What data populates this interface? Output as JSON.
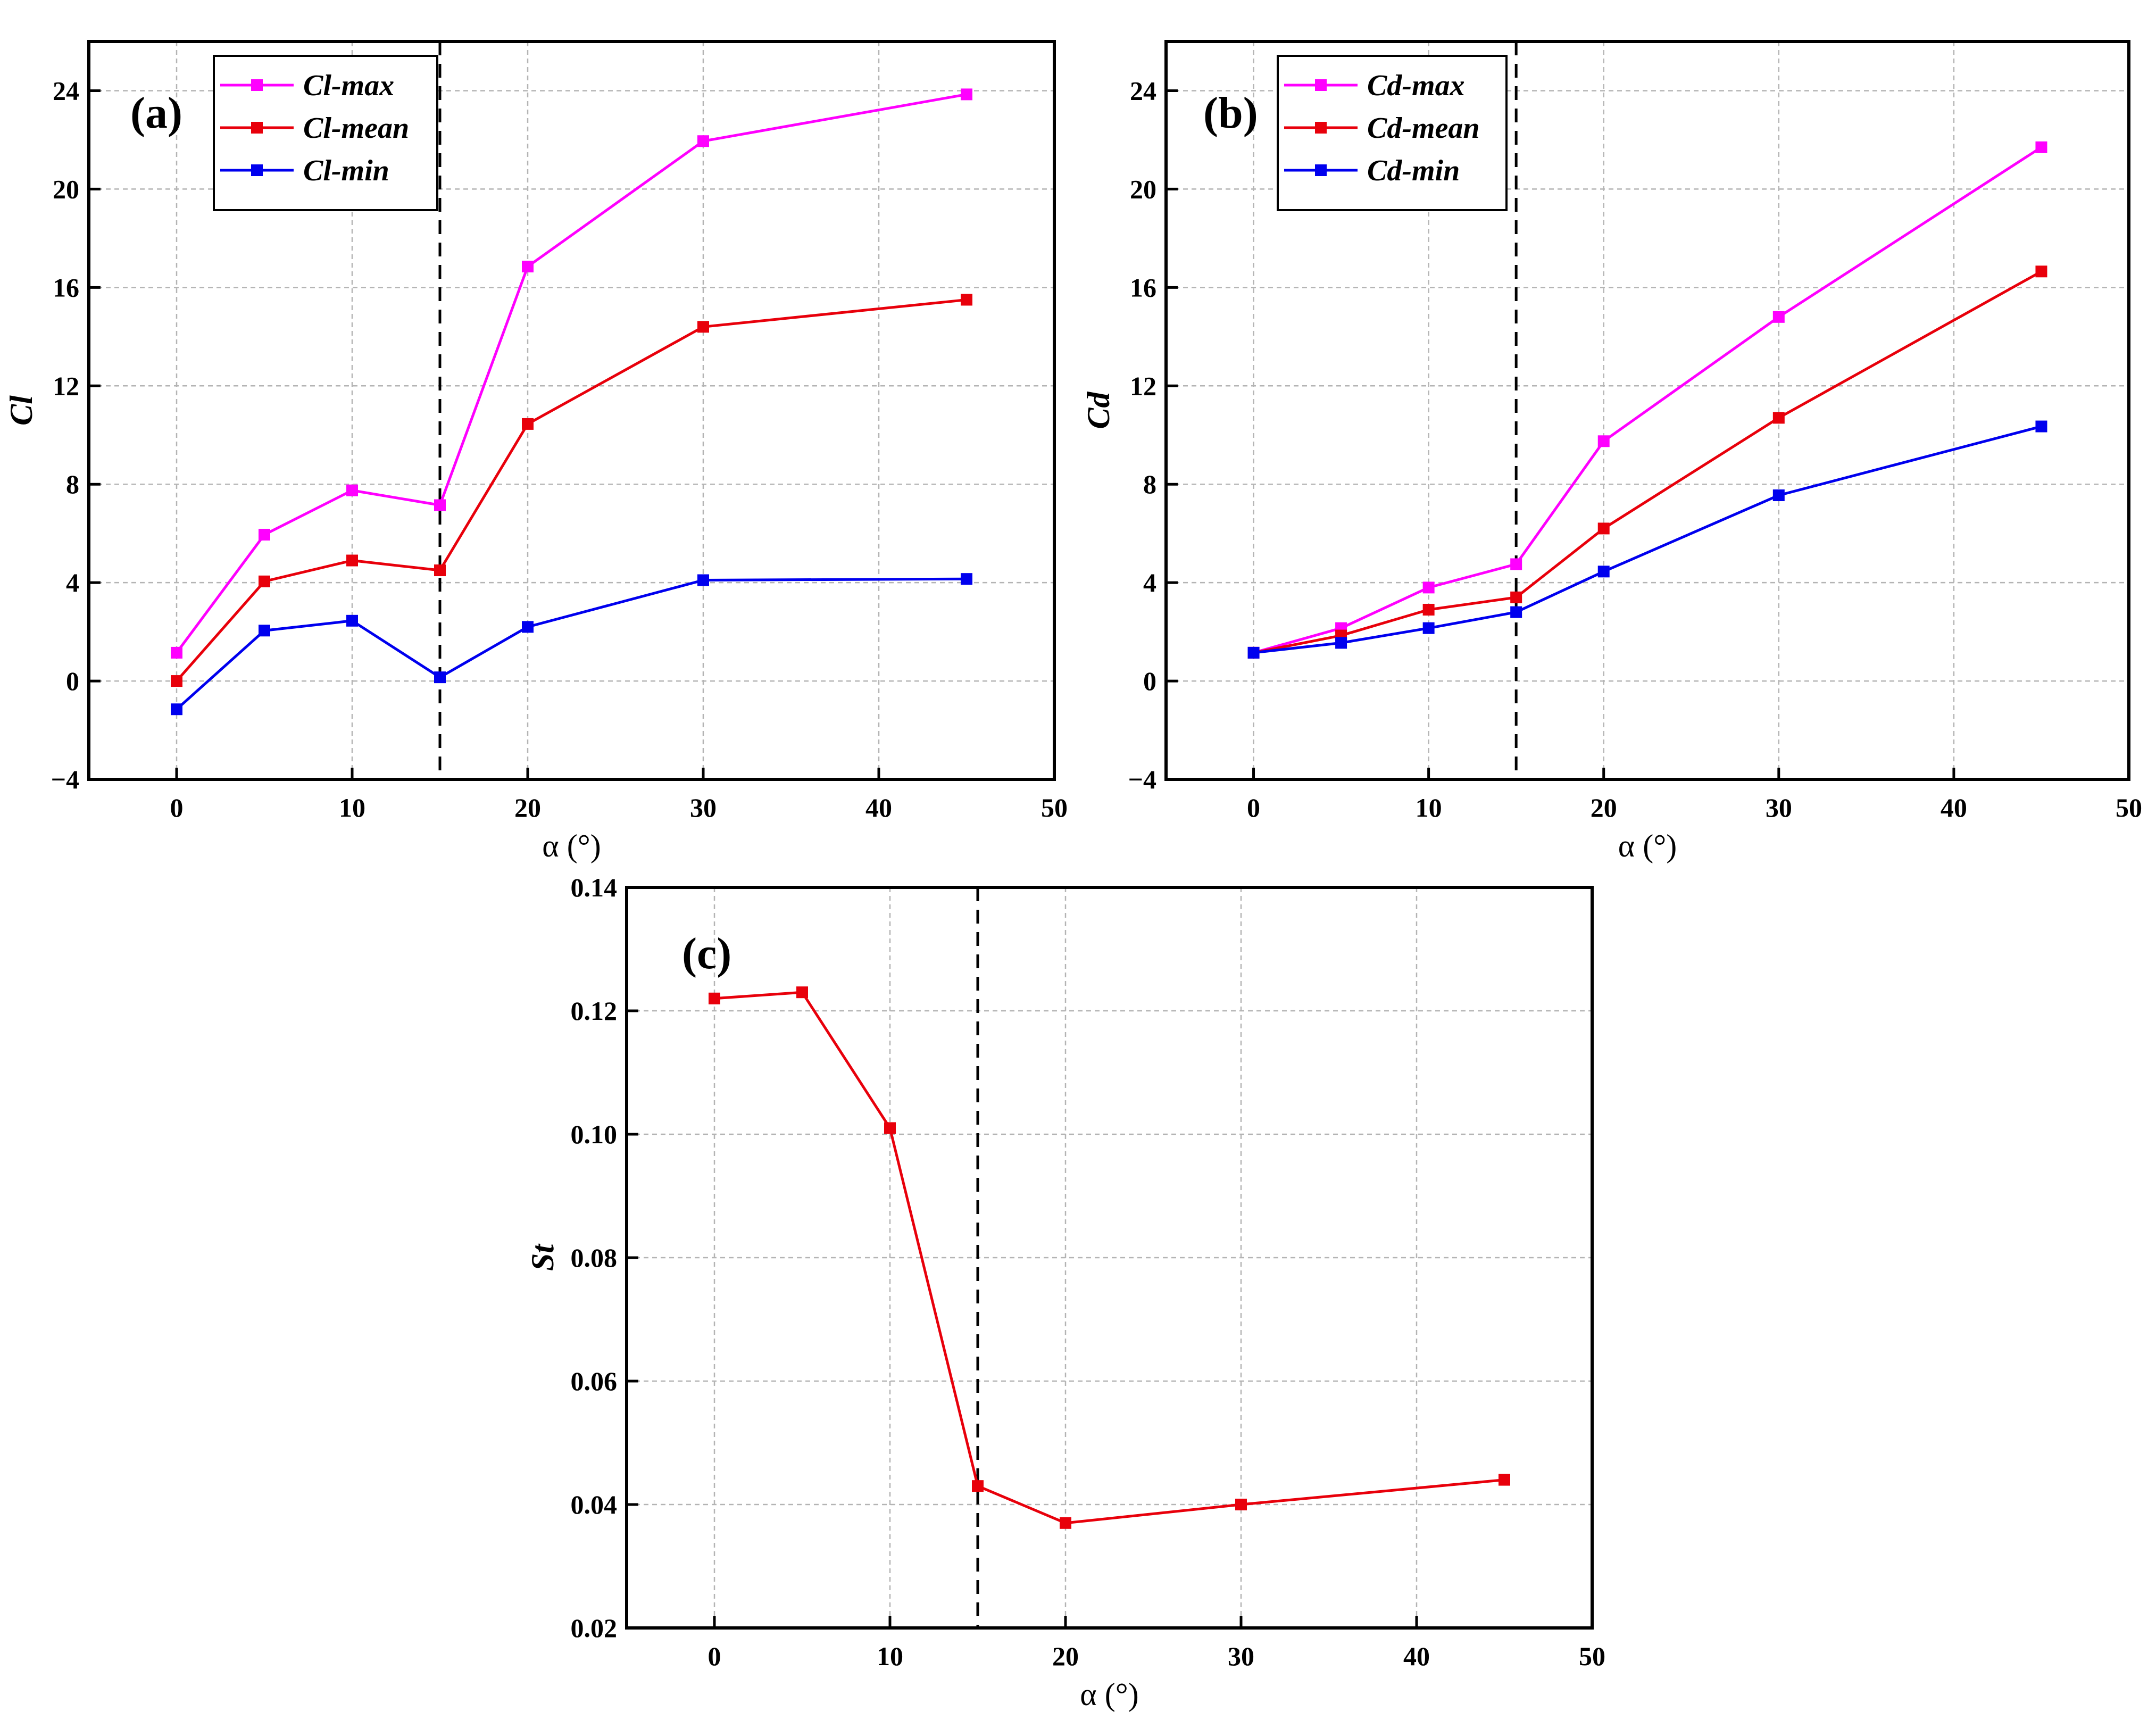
{
  "chart_data": [
    {
      "id": "a",
      "type": "line",
      "panel_label": "(a)",
      "xlabel": "α (°)",
      "ylabel": "Cl",
      "xlim": [
        -5,
        50
      ],
      "ylim": [
        -4,
        26
      ],
      "xticks": [
        0,
        10,
        20,
        30,
        40,
        50
      ],
      "yticks": [
        -4,
        0,
        4,
        8,
        12,
        16,
        20,
        24
      ],
      "grid": true,
      "vline_x": 15,
      "legend_position": "top-left",
      "x": [
        0,
        5,
        10,
        15,
        20,
        30,
        45
      ],
      "series": [
        {
          "name": "Cl-max",
          "color": "#ff00ff",
          "values": [
            1.15,
            5.95,
            7.75,
            7.15,
            16.85,
            21.95,
            23.85
          ]
        },
        {
          "name": "Cl-mean",
          "color": "#e8000b",
          "values": [
            0.0,
            4.05,
            4.9,
            4.5,
            10.45,
            14.4,
            15.5
          ]
        },
        {
          "name": "Cl-min",
          "color": "#0000ee",
          "values": [
            -1.15,
            2.05,
            2.45,
            0.15,
            2.2,
            4.1,
            4.15
          ]
        }
      ]
    },
    {
      "id": "b",
      "type": "line",
      "panel_label": "(b)",
      "xlabel": "α (°)",
      "ylabel": "Cd",
      "xlim": [
        -5,
        50
      ],
      "ylim": [
        -4,
        26
      ],
      "xticks": [
        0,
        10,
        20,
        30,
        40,
        50
      ],
      "yticks": [
        -4,
        0,
        4,
        8,
        12,
        16,
        20,
        24
      ],
      "grid": true,
      "vline_x": 15,
      "legend_position": "top-left",
      "x": [
        0,
        5,
        10,
        15,
        20,
        30,
        45
      ],
      "series": [
        {
          "name": "Cd-max",
          "color": "#ff00ff",
          "values": [
            1.15,
            2.15,
            3.8,
            4.75,
            9.75,
            14.8,
            21.7
          ]
        },
        {
          "name": "Cd-mean",
          "color": "#e8000b",
          "values": [
            1.15,
            1.85,
            2.9,
            3.4,
            6.2,
            10.7,
            16.65
          ]
        },
        {
          "name": "Cd-min",
          "color": "#0000ee",
          "values": [
            1.15,
            1.55,
            2.15,
            2.8,
            4.45,
            7.55,
            10.35
          ]
        }
      ]
    },
    {
      "id": "c",
      "type": "line",
      "panel_label": "(c)",
      "xlabel": "α (°)",
      "ylabel": "St",
      "xlim": [
        -5,
        50
      ],
      "ylim": [
        0.02,
        0.14
      ],
      "xticks": [
        0,
        10,
        20,
        30,
        40,
        50
      ],
      "yticks": [
        0.02,
        0.04,
        0.06,
        0.08,
        0.1,
        0.12,
        0.14
      ],
      "ytick_decimals": 2,
      "grid": true,
      "vline_x": 15,
      "legend_position": "none",
      "x": [
        0,
        5,
        10,
        15,
        20,
        30,
        45
      ],
      "series": [
        {
          "name": "St",
          "color": "#e8000b",
          "values": [
            0.122,
            0.123,
            0.101,
            0.043,
            0.037,
            0.04,
            0.044
          ]
        }
      ]
    }
  ]
}
